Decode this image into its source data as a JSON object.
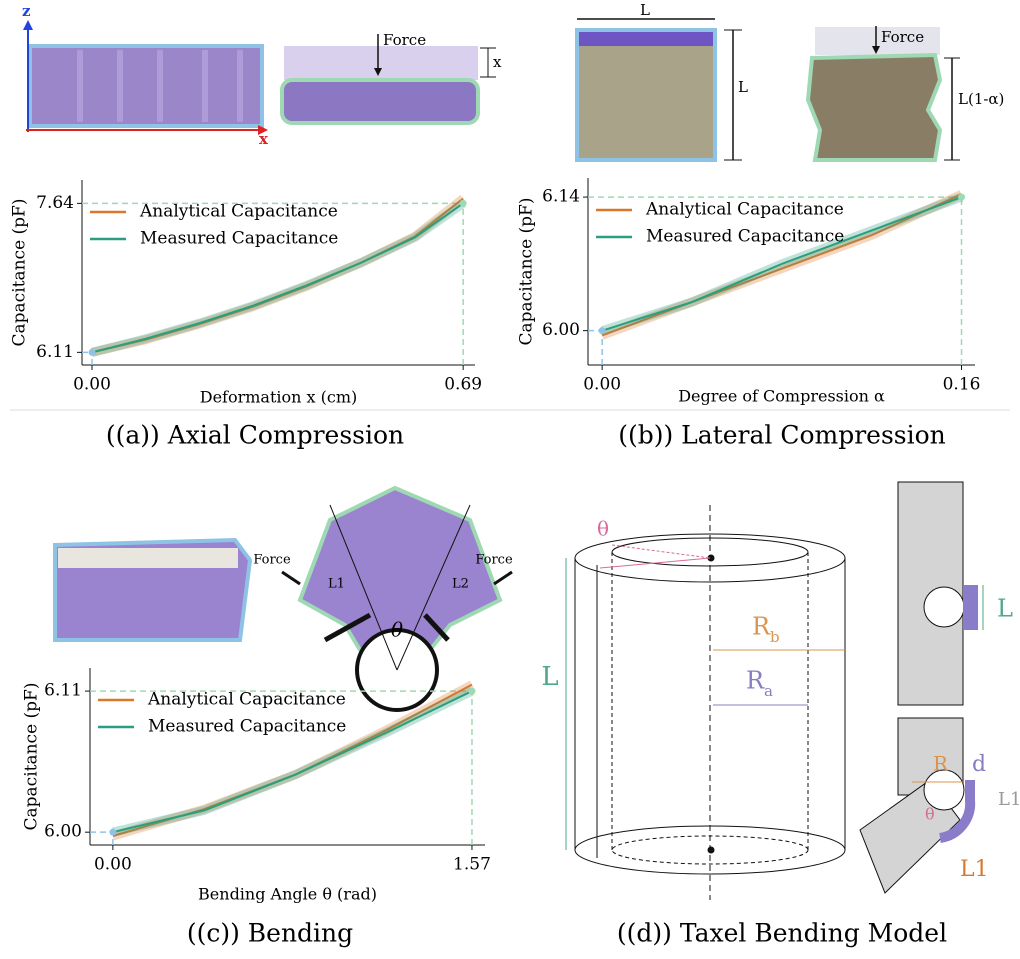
{
  "captions": [
    "((a)) Axial Compression",
    "((b)) Lateral Compression",
    "((c)) Bending",
    "((d)) Taxel Bending Model"
  ],
  "chart_data": [
    {
      "type": "line",
      "xlabel": "Deformation x (cm)",
      "ylabel": "Capacitance (pF)",
      "x": [
        0,
        0.1,
        0.2,
        0.3,
        0.4,
        0.5,
        0.6,
        0.69
      ],
      "series": [
        {
          "name": "Analytical Capacitance",
          "color": "#d9782d",
          "values": [
            6.11,
            6.24,
            6.4,
            6.58,
            6.79,
            7.03,
            7.3,
            7.69
          ]
        },
        {
          "name": "Measured Capacitance",
          "color": "#2a9e80",
          "values": [
            6.11,
            6.25,
            6.41,
            6.59,
            6.8,
            7.03,
            7.29,
            7.64
          ]
        }
      ],
      "xlim": [
        -0.0186,
        0.712
      ],
      "ylim": [
        5.98,
        7.88
      ],
      "xticks": [
        {
          "value": 0,
          "label": "0.00"
        },
        0.69
      ],
      "yticks": [
        6.11,
        7.64
      ],
      "legend": "upper left"
    },
    {
      "type": "line",
      "xlabel": "Degree of Compression α",
      "ylabel": "Capacitance (pF)",
      "x": [
        0,
        0.04,
        0.08,
        0.12,
        0.16
      ],
      "series": [
        {
          "name": "Analytical Capacitance",
          "color": "#d9782d",
          "values": [
            5.995,
            6.03,
            6.065,
            6.1,
            6.143
          ]
        },
        {
          "name": "Measured Capacitance",
          "color": "#2a9e80",
          "values": [
            6.0,
            6.03,
            6.07,
            6.105,
            6.14
          ]
        }
      ],
      "xlim": [
        -0.0063,
        0.166
      ],
      "ylim": [
        5.964,
        6.16
      ],
      "xticks": [
        {
          "value": 0,
          "label": "0.00"
        },
        0.16
      ],
      "yticks": [
        {
          "value": 6,
          "label": "6.00"
        },
        6.14
      ],
      "legend": "upper left"
    },
    {
      "type": "line",
      "xlabel": "Bending Angle θ (rad)",
      "ylabel": "Capacitance (pF)",
      "x": [
        0,
        0.4,
        0.8,
        1.2,
        1.57
      ],
      "series": [
        {
          "name": "Analytical Capacitance",
          "color": "#d9782d",
          "values": [
            5.997,
            6.018,
            6.045,
            6.08,
            6.115
          ]
        },
        {
          "name": "Measured Capacitance",
          "color": "#2a9e80",
          "values": [
            6.0,
            6.017,
            6.045,
            6.078,
            6.11
          ]
        }
      ],
      "xlim": [
        -0.1,
        1.627
      ],
      "ylim": [
        5.99,
        6.128
      ],
      "xticks": [
        {
          "value": 0,
          "label": "0.00"
        },
        1.57
      ],
      "yticks": [
        {
          "value": 6,
          "label": "6.00"
        },
        6.11
      ],
      "legend": "upper left"
    }
  ],
  "photos": {
    "a": {
      "axis_z": "z",
      "axis_x": "x",
      "force": "Force",
      "displacement": "x"
    },
    "b": {
      "width": "L",
      "height": "L",
      "force": "Force",
      "compressed": "L(1-α)"
    },
    "c": {
      "force_left": "Force",
      "force_right": "Force",
      "length_left": "L1",
      "length_right": "L2",
      "angle": "θ"
    }
  },
  "diagram": {
    "angle": "θ",
    "length": "L",
    "outer_radius": {
      "symbol": "R",
      "sub": "b"
    },
    "inner_radius": {
      "symbol": "R",
      "sub": "a"
    },
    "straight_length": "L",
    "radius": "R",
    "thickness": "d",
    "arc_length_gray": "L1",
    "bend_angle": "θ",
    "arc_length": "L1"
  }
}
